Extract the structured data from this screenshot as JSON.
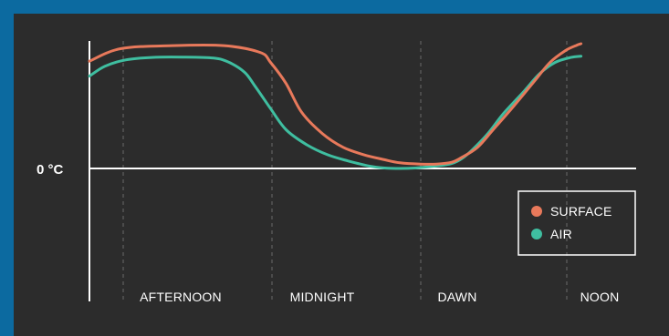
{
  "chart_data": {
    "type": "line",
    "y_reference_label": "0 °C",
    "x_categories": [
      "AFTERNOON",
      "MIDNIGHT",
      "DAWN",
      "NOON"
    ],
    "series": [
      {
        "name": "SURFACE",
        "color": "#e8795b",
        "points": [
          [
            0.0,
            0.86
          ],
          [
            0.06,
            0.96
          ],
          [
            0.16,
            0.985
          ],
          [
            0.26,
            0.985
          ],
          [
            0.33,
            0.93
          ],
          [
            0.35,
            0.85
          ],
          [
            0.38,
            0.68
          ],
          [
            0.41,
            0.45
          ],
          [
            0.45,
            0.28
          ],
          [
            0.49,
            0.17
          ],
          [
            0.53,
            0.11
          ],
          [
            0.57,
            0.07
          ],
          [
            0.6,
            0.045
          ],
          [
            0.64,
            0.035
          ],
          [
            0.67,
            0.035
          ],
          [
            0.7,
            0.05
          ],
          [
            0.72,
            0.09
          ],
          [
            0.75,
            0.17
          ],
          [
            0.78,
            0.31
          ],
          [
            0.82,
            0.5
          ],
          [
            0.86,
            0.7
          ],
          [
            0.89,
            0.85
          ],
          [
            0.92,
            0.945
          ],
          [
            0.94,
            0.985
          ],
          [
            0.95,
            1.0
          ]
        ]
      },
      {
        "name": "AIR",
        "color": "#3fbea0",
        "points": [
          [
            0.0,
            0.74
          ],
          [
            0.03,
            0.82
          ],
          [
            0.07,
            0.87
          ],
          [
            0.12,
            0.89
          ],
          [
            0.18,
            0.893
          ],
          [
            0.24,
            0.885
          ],
          [
            0.27,
            0.85
          ],
          [
            0.3,
            0.77
          ],
          [
            0.32,
            0.66
          ],
          [
            0.35,
            0.48
          ],
          [
            0.38,
            0.31
          ],
          [
            0.42,
            0.19
          ],
          [
            0.46,
            0.11
          ],
          [
            0.5,
            0.06
          ],
          [
            0.54,
            0.02
          ],
          [
            0.57,
            0.004
          ],
          [
            0.6,
            0.0
          ],
          [
            0.63,
            0.004
          ],
          [
            0.67,
            0.02
          ],
          [
            0.7,
            0.04
          ],
          [
            0.72,
            0.08
          ],
          [
            0.74,
            0.15
          ],
          [
            0.77,
            0.28
          ],
          [
            0.8,
            0.44
          ],
          [
            0.84,
            0.62
          ],
          [
            0.87,
            0.76
          ],
          [
            0.9,
            0.85
          ],
          [
            0.93,
            0.89
          ],
          [
            0.95,
            0.9
          ]
        ]
      }
    ],
    "legend": {
      "position": "bottom-right"
    },
    "grid": "vertical-dashed"
  }
}
